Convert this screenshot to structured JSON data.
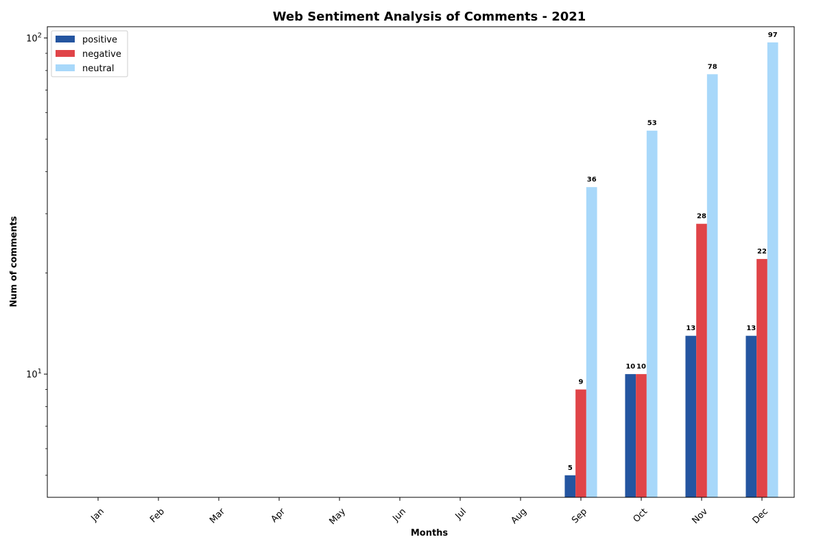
{
  "chart_data": {
    "type": "bar",
    "title": "Web Sentiment Analysis of Comments - 2021",
    "xlabel": "Months",
    "ylabel": "Num of comments",
    "yscale": "log",
    "ylim": [
      4.3,
      108
    ],
    "yticks": [
      {
        "value": 10,
        "base": "10",
        "exp": "1"
      },
      {
        "value": 100,
        "base": "10",
        "exp": "2"
      }
    ],
    "grid": false,
    "legend_position": "top-left",
    "categories": [
      "Jan",
      "Feb",
      "Mar",
      "Apr",
      "May",
      "Jun",
      "Jul",
      "Aug",
      "Sep",
      "Oct",
      "Nov",
      "Dec"
    ],
    "series": [
      {
        "name": "positive",
        "color": "#2455a0",
        "values": [
          null,
          null,
          null,
          null,
          null,
          null,
          null,
          null,
          5,
          10,
          13,
          13
        ]
      },
      {
        "name": "negative",
        "color": "#e04448",
        "values": [
          null,
          null,
          null,
          null,
          null,
          null,
          null,
          null,
          9,
          10,
          28,
          22
        ]
      },
      {
        "name": "neutral",
        "color": "#a8d8fa",
        "values": [
          null,
          null,
          null,
          null,
          null,
          null,
          null,
          null,
          36,
          53,
          78,
          97
        ]
      }
    ]
  }
}
